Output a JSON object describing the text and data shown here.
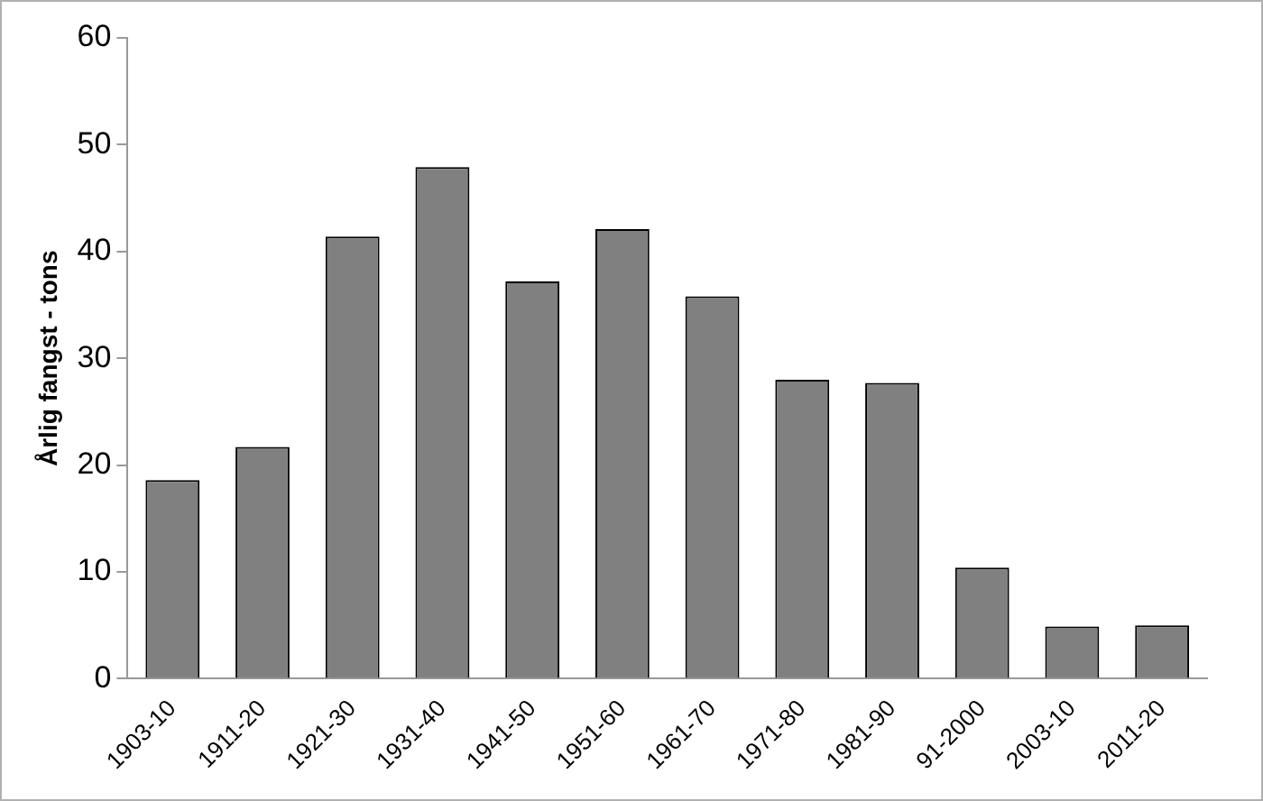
{
  "chart_data": {
    "type": "bar",
    "ylabel": "Årlig fangst - tons",
    "categories": [
      "1903-10",
      "1911-20",
      "1921-30",
      "1931-40",
      "1941-50",
      "1951-60",
      "1961-70",
      "1971-80",
      "1981-90",
      "91-2000",
      "2003-10",
      "2011-20"
    ],
    "values": [
      18.6,
      21.7,
      41.4,
      47.9,
      37.2,
      42.1,
      35.8,
      28.0,
      27.7,
      10.4,
      4.9,
      5.0
    ],
    "color": "#808080",
    "ylim": [
      0,
      60
    ],
    "yticks": [
      0,
      10,
      20,
      30,
      40,
      50,
      60
    ],
    "grid": false,
    "legend": false
  }
}
